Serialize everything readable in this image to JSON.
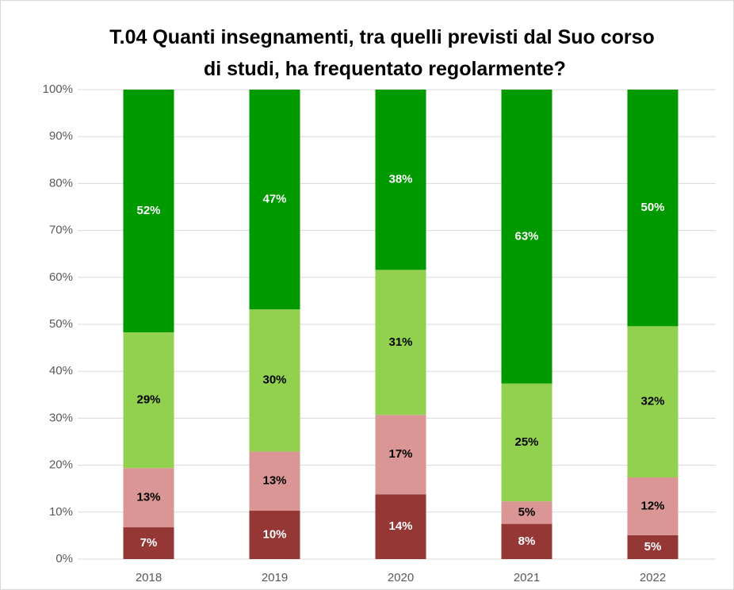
{
  "chart_data": {
    "type": "stacked_bar",
    "title": "T.04 Quanti insegnamenti, tra quelli previsti dal Suo corso di studi, ha frequentato regolarmente?",
    "categories": [
      "2018",
      "2019",
      "2020",
      "2021",
      "2022"
    ],
    "series": [
      {
        "color": "#953735",
        "label_color": "#ffffff",
        "values": [
          6.8,
          10.3,
          13.8,
          7.5,
          5.1
        ],
        "value_labels": [
          "7%",
          "10%",
          "14%",
          "8%",
          "5%"
        ]
      },
      {
        "color": "#d99694",
        "label_color": "#000000",
        "values": [
          12.6,
          12.6,
          16.9,
          4.8,
          12.3
        ],
        "value_labels": [
          "13%",
          "13%",
          "17%",
          "5%",
          "12%"
        ]
      },
      {
        "color": "#92d050",
        "label_color": "#000000",
        "values": [
          28.9,
          30.3,
          30.9,
          25.1,
          32.2
        ],
        "value_labels": [
          "29%",
          "30%",
          "31%",
          "25%",
          "32%"
        ]
      },
      {
        "color": "#009900",
        "label_color": "#ffffff",
        "values": [
          51.7,
          46.8,
          38.4,
          62.6,
          50.4
        ],
        "value_labels": [
          "52%",
          "47%",
          "38%",
          "63%",
          "50%"
        ]
      }
    ],
    "ylim": [
      0,
      100
    ],
    "yticks": [
      {
        "value": 0,
        "label": "0%"
      },
      {
        "value": 10,
        "label": "10%"
      },
      {
        "value": 20,
        "label": "20%"
      },
      {
        "value": 30,
        "label": "30%"
      },
      {
        "value": 40,
        "label": "40%"
      },
      {
        "value": 50,
        "label": "50%"
      },
      {
        "value": 60,
        "label": "60%"
      },
      {
        "value": 70,
        "label": "70%"
      },
      {
        "value": 80,
        "label": "80%"
      },
      {
        "value": 90,
        "label": "90%"
      },
      {
        "value": 100,
        "label": "100%"
      }
    ],
    "grid": true
  }
}
